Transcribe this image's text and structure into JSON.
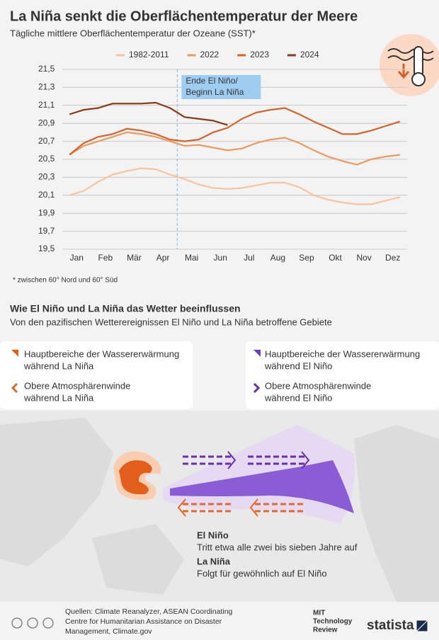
{
  "chart_data": {
    "type": "line",
    "title": "La Niña senkt die Oberflächentemperatur der Meere",
    "subtitle": "Tägliche mittlere Oberflächentemperatur der Ozeane (SST)*",
    "categories": [
      "Jan",
      null,
      "Feb",
      null,
      "Mär",
      null,
      "Apr",
      null,
      "Mai",
      null,
      "Jun",
      null,
      "Jul",
      null,
      "Aug",
      null,
      "Sep",
      null,
      "Okt",
      null,
      "Nov",
      null,
      "Dez",
      null
    ],
    "series": [
      {
        "name": "1982-2011",
        "color": "#f7c3a0",
        "values": [
          20.1,
          20.15,
          20.25,
          20.33,
          20.37,
          20.4,
          20.39,
          20.33,
          20.28,
          20.22,
          20.18,
          20.17,
          20.18,
          20.21,
          20.24,
          20.24,
          20.19,
          20.1,
          20.05,
          20.02,
          20.0,
          20.0,
          20.04,
          20.08
        ]
      },
      {
        "name": "2022",
        "color": "#f0995c",
        "values": [
          20.55,
          20.65,
          20.7,
          20.75,
          20.8,
          20.78,
          20.75,
          20.7,
          20.65,
          20.66,
          20.63,
          20.6,
          20.62,
          20.68,
          20.72,
          20.74,
          20.68,
          20.6,
          20.53,
          20.48,
          20.44,
          20.5,
          20.53,
          20.55
        ]
      },
      {
        "name": "2023",
        "color": "#d2642a",
        "values": [
          20.55,
          20.68,
          20.75,
          20.78,
          20.84,
          20.82,
          20.78,
          20.72,
          20.7,
          20.72,
          20.8,
          20.85,
          20.95,
          21.02,
          21.05,
          21.07,
          21.0,
          20.92,
          20.85,
          20.78,
          20.78,
          20.82,
          20.87,
          20.92
        ]
      },
      {
        "name": "2024",
        "color": "#8b3a17",
        "values": [
          21.0,
          21.05,
          21.07,
          21.12,
          21.12,
          21.12,
          21.13,
          21.07,
          20.97,
          20.95,
          20.93,
          20.88,
          null,
          null,
          null,
          null,
          null,
          null,
          null,
          null,
          null,
          null,
          null,
          null
        ]
      }
    ],
    "ylim": [
      19.5,
      21.5
    ],
    "yticks": [
      {
        "value": 19.5,
        "label": "19,5"
      },
      {
        "value": 19.7,
        "label": "19,7"
      },
      {
        "value": 19.9,
        "label": "19,9"
      },
      {
        "value": 20.1,
        "label": "20,1"
      },
      {
        "value": 20.3,
        "label": "20,3"
      },
      {
        "value": 20.5,
        "label": "20,5"
      },
      {
        "value": 20.7,
        "label": "20,7"
      },
      {
        "value": 20.9,
        "label": "20,9"
      },
      {
        "value": 21.1,
        "label": "21,1"
      },
      {
        "value": 21.3,
        "label": "21,3"
      },
      {
        "value": 21.5,
        "label": "21,5"
      }
    ],
    "grid": true,
    "annotation": [
      "Ende El Niño/",
      "Beginn La Niña"
    ]
  },
  "footnote": "* zwischen 60° Nord und 60° Süd",
  "section": {
    "title": "Wie El Niño und La Niña das Wetter beeinflussen",
    "subtitle": "Von den pazifischen Wetterereignissen El Niño und La Niña betroffene Gebiete",
    "legend_left": [
      [
        "Hauptbereiche der Wassererwärmung",
        "während La Niña"
      ],
      [
        "Obere Atmosphärenwinde",
        "während La Niña"
      ]
    ],
    "legend_right": [
      [
        "Hauptbereiche der Wassererwärmung",
        "während El Niño"
      ],
      [
        "Obere Atmosphärenwinde",
        "während El Niño"
      ]
    ],
    "el_nino": {
      "title": "El Niño",
      "text": "Tritt etwa alle zwei bis sieben Jahre auf"
    },
    "la_nina": {
      "title": "La Niña",
      "text": "Folgt für gewöhnlich auf El Niño"
    }
  },
  "source": [
    "Quellen: Climate Reanalyzer, ASEAN Coordinating",
    "Centre for Humanitarian Assistance on Disaster",
    "Management, Climate.gov"
  ],
  "logos": [
    "MIT",
    "Technology",
    "Review",
    "statista"
  ]
}
